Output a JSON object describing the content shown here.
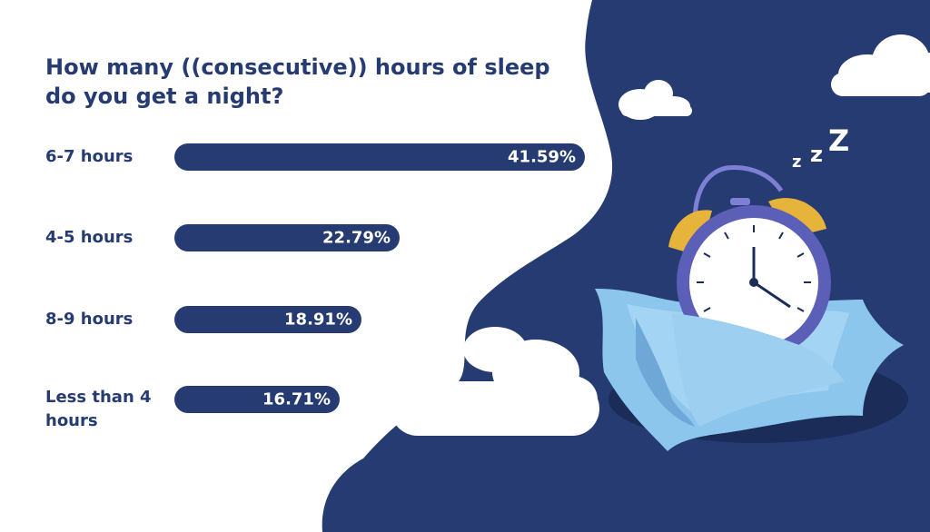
{
  "chart_data": {
    "type": "bar",
    "orientation": "horizontal",
    "title": "How many ((consecutive)) hours of sleep do you get a night?",
    "categories": [
      "6-7 hours",
      "4-5 hours",
      "8-9 hours",
      "Less than 4 hours"
    ],
    "values": [
      41.59,
      22.79,
      18.91,
      16.71
    ],
    "value_labels": [
      "41.59%",
      "22.79%",
      "18.91%",
      "16.71%"
    ],
    "unit": "%",
    "grid": false,
    "legend": "none"
  },
  "colors": {
    "bar": "#253b72",
    "text": "#253b72",
    "background_blob": "#253b72",
    "cloud": "#ffffff",
    "pillow": "#8cc6ec",
    "clock_body": "#5b5fb8",
    "clock_bells": "#e6b43a"
  },
  "illustration": {
    "icons": [
      "cloud-icon",
      "alarm-clock-icon",
      "pillow-icon",
      "sleep-zzz-icon"
    ],
    "zzz": [
      "z",
      "z",
      "Z"
    ]
  }
}
